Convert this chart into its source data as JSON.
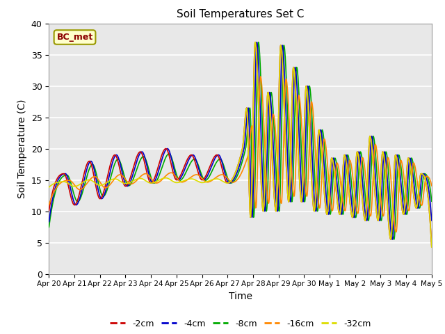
{
  "title": "Soil Temperatures Set C",
  "xlabel": "Time",
  "ylabel": "Soil Temperature (C)",
  "ylim": [
    0,
    40
  ],
  "xlim": [
    0,
    15
  ],
  "bg_color": "#e8e8e8",
  "annotation_text": "BC_met",
  "annotation_color": "#8b0000",
  "annotation_bg": "#ffffcc",
  "series_colors": {
    "-2cm": "#cc0000",
    "-4cm": "#0000cc",
    "-8cm": "#00aa00",
    "-16cm": "#ff8800",
    "-32cm": "#dddd00"
  },
  "xtick_labels": [
    "Apr 20",
    "Apr 21",
    "Apr 22",
    "Apr 23",
    "Apr 24",
    "Apr 25",
    "Apr 26",
    "Apr 27",
    "Apr 28",
    "Apr 29",
    "Apr 30",
    "May 1",
    "May 2",
    "May 3",
    "May 4",
    "May 5"
  ],
  "ytick_values": [
    0,
    5,
    10,
    15,
    20,
    25,
    30,
    35,
    40
  ]
}
